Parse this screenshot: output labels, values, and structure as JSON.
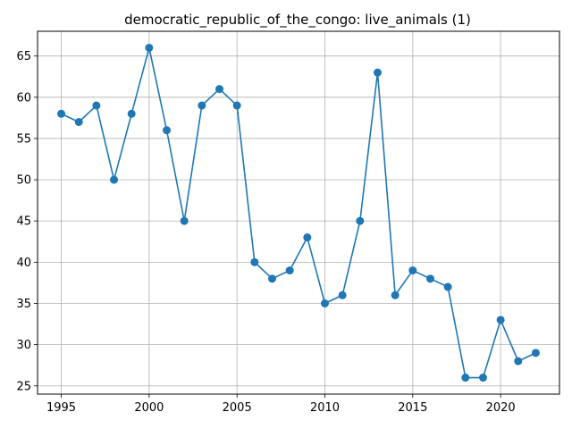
{
  "chart_data": {
    "type": "line",
    "title": "democratic_republic_of_the_congo: live_animals (1)",
    "xlabel": "",
    "ylabel": "",
    "x": [
      1995,
      1996,
      1997,
      1998,
      1999,
      2000,
      2001,
      2002,
      2003,
      2004,
      2005,
      2006,
      2007,
      2008,
      2009,
      2010,
      2011,
      2012,
      2013,
      2014,
      2015,
      2016,
      2017,
      2018,
      2019,
      2020,
      2021,
      2022
    ],
    "series": [
      {
        "values": [
          58,
          57,
          59,
          50,
          58,
          66,
          56,
          45,
          59,
          61,
          59,
          40,
          38,
          39,
          43,
          35,
          36,
          45,
          63,
          36,
          39,
          38,
          37,
          26,
          26,
          33,
          28,
          29
        ],
        "color": "#1f77b4",
        "marker": "circle"
      }
    ],
    "xlim": [
      1993.65,
      2023.35
    ],
    "ylim": [
      24,
      68
    ],
    "xticks": [
      1995,
      2000,
      2005,
      2010,
      2015,
      2020
    ],
    "yticks": [
      25,
      30,
      35,
      40,
      45,
      50,
      55,
      60,
      65
    ],
    "grid": true,
    "legend": "none"
  }
}
